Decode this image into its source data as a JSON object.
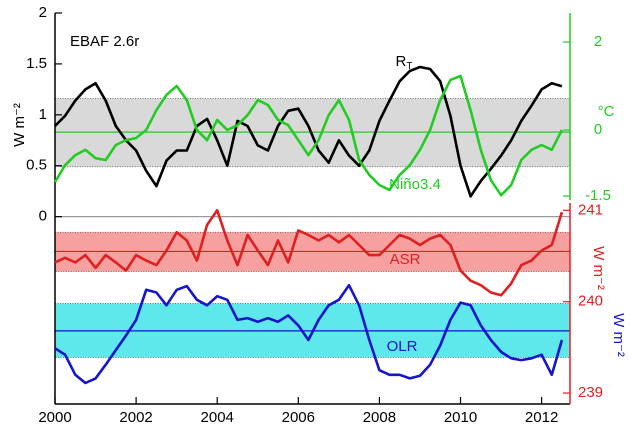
{
  "chart_data": {
    "type": "line",
    "annotation": "EBAF 2.6r",
    "x": [
      2000,
      2000.25,
      2000.5,
      2000.75,
      2001,
      2001.25,
      2001.5,
      2001.75,
      2002,
      2002.25,
      2002.5,
      2002.75,
      2003,
      2003.25,
      2003.5,
      2003.75,
      2004,
      2004.25,
      2004.5,
      2004.75,
      2005,
      2005.25,
      2005.5,
      2005.75,
      2006,
      2006.25,
      2006.5,
      2006.75,
      2007,
      2007.25,
      2007.5,
      2007.75,
      2008,
      2008.25,
      2008.5,
      2008.75,
      2009,
      2009.25,
      2009.5,
      2009.75,
      2010,
      2010.25,
      2010.5,
      2010.75,
      2011,
      2011.25,
      2011.5,
      2011.75,
      2012,
      2012.25,
      2012.5
    ],
    "xlim": [
      2000,
      2012.7
    ],
    "xticks": [
      2000,
      2002,
      2004,
      2006,
      2008,
      2010,
      2012
    ],
    "ylim": [
      -1.84,
      2
    ],
    "yticks": [
      0,
      0.5,
      1,
      1.5,
      2
    ],
    "y_label": "W m⁻²",
    "y2lim": [
      -1.59,
      2.66
    ],
    "y2ticks": [
      -1.5,
      0,
      2
    ],
    "y2_label": "°C",
    "y3lim": [
      238.88,
      241.08
    ],
    "y3ticks": [
      239,
      240,
      241
    ],
    "y3_label": "W m⁻²",
    "y4_label": "W m⁻²",
    "bands": [
      {
        "axis": "y",
        "range": [
          0.49,
          1.16
        ],
        "mean": 0.83,
        "color": "#d9d9d9"
      },
      {
        "axis": "y3",
        "range": [
          240.33,
          240.76
        ],
        "mean": 240.55,
        "color": "#f7a0a0"
      },
      {
        "axis": "y3",
        "range": [
          239.39,
          239.98
        ],
        "mean": 239.68,
        "color": "#5ee8ec"
      }
    ],
    "series": [
      {
        "name": "R",
        "name_sub": "T",
        "color": "#000000",
        "axis": "y",
        "values": [
          0.89,
          0.99,
          1.14,
          1.25,
          1.31,
          1.14,
          0.89,
          0.75,
          0.65,
          0.45,
          0.3,
          0.55,
          0.65,
          0.65,
          0.89,
          0.96,
          0.75,
          0.5,
          0.94,
          0.89,
          0.7,
          0.65,
          0.89,
          1.04,
          1.06,
          0.89,
          0.65,
          0.53,
          0.75,
          0.6,
          0.5,
          0.65,
          0.94,
          1.14,
          1.33,
          1.43,
          1.47,
          1.45,
          1.33,
          0.99,
          0.5,
          0.2,
          0.35,
          0.47,
          0.6,
          0.75,
          0.94,
          1.09,
          1.25,
          1.31,
          1.28
        ]
      },
      {
        "name": "Niño3.4",
        "color": "#22cc22",
        "axis": "y2",
        "values": [
          -1.18,
          -0.8,
          -0.57,
          -0.45,
          -0.64,
          -0.68,
          -0.34,
          -0.23,
          -0.18,
          0,
          0.45,
          0.8,
          1.0,
          0.68,
          0,
          -0.23,
          0.23,
          0,
          0.11,
          0.34,
          0.68,
          0.57,
          0.23,
          0.11,
          -0.23,
          -0.57,
          -0.23,
          0.34,
          0.68,
          0.23,
          -0.68,
          -1.02,
          -1.25,
          -1.36,
          -1.02,
          -0.8,
          -0.45,
          0,
          0.68,
          1.14,
          1.23,
          0.45,
          -0.45,
          -1.14,
          -1.48,
          -1.25,
          -0.68,
          -0.45,
          -0.34,
          -0.45,
          0
        ]
      },
      {
        "name": "ASR",
        "color": "#e02020",
        "axis": "y3",
        "values": [
          240.43,
          240.48,
          240.43,
          240.51,
          240.37,
          240.51,
          240.43,
          240.34,
          240.51,
          240.45,
          240.4,
          240.56,
          240.76,
          240.67,
          240.45,
          240.84,
          241.0,
          240.67,
          240.4,
          240.73,
          240.56,
          240.4,
          240.67,
          240.43,
          240.78,
          240.73,
          240.67,
          240.73,
          240.65,
          240.73,
          240.62,
          240.51,
          240.51,
          240.62,
          240.73,
          240.69,
          240.62,
          240.69,
          240.73,
          240.62,
          240.34,
          240.23,
          240.18,
          240.1,
          240.07,
          240.2,
          240.4,
          240.45,
          240.56,
          240.62,
          240.98
        ]
      },
      {
        "name": "OLR",
        "color": "#1515cc",
        "axis": "y3",
        "values": [
          239.49,
          239.42,
          239.2,
          239.11,
          239.16,
          239.31,
          239.47,
          239.63,
          239.8,
          240.13,
          240.1,
          239.96,
          240.13,
          240.17,
          240.02,
          239.96,
          240.06,
          240.02,
          239.8,
          239.82,
          239.78,
          239.82,
          239.78,
          239.85,
          239.74,
          239.58,
          239.8,
          239.96,
          240.02,
          240.18,
          239.96,
          239.58,
          239.25,
          239.2,
          239.2,
          239.16,
          239.19,
          239.31,
          239.52,
          239.8,
          239.99,
          239.96,
          239.74,
          239.58,
          239.45,
          239.38,
          239.36,
          239.38,
          239.42,
          239.2,
          239.58
        ]
      }
    ]
  }
}
